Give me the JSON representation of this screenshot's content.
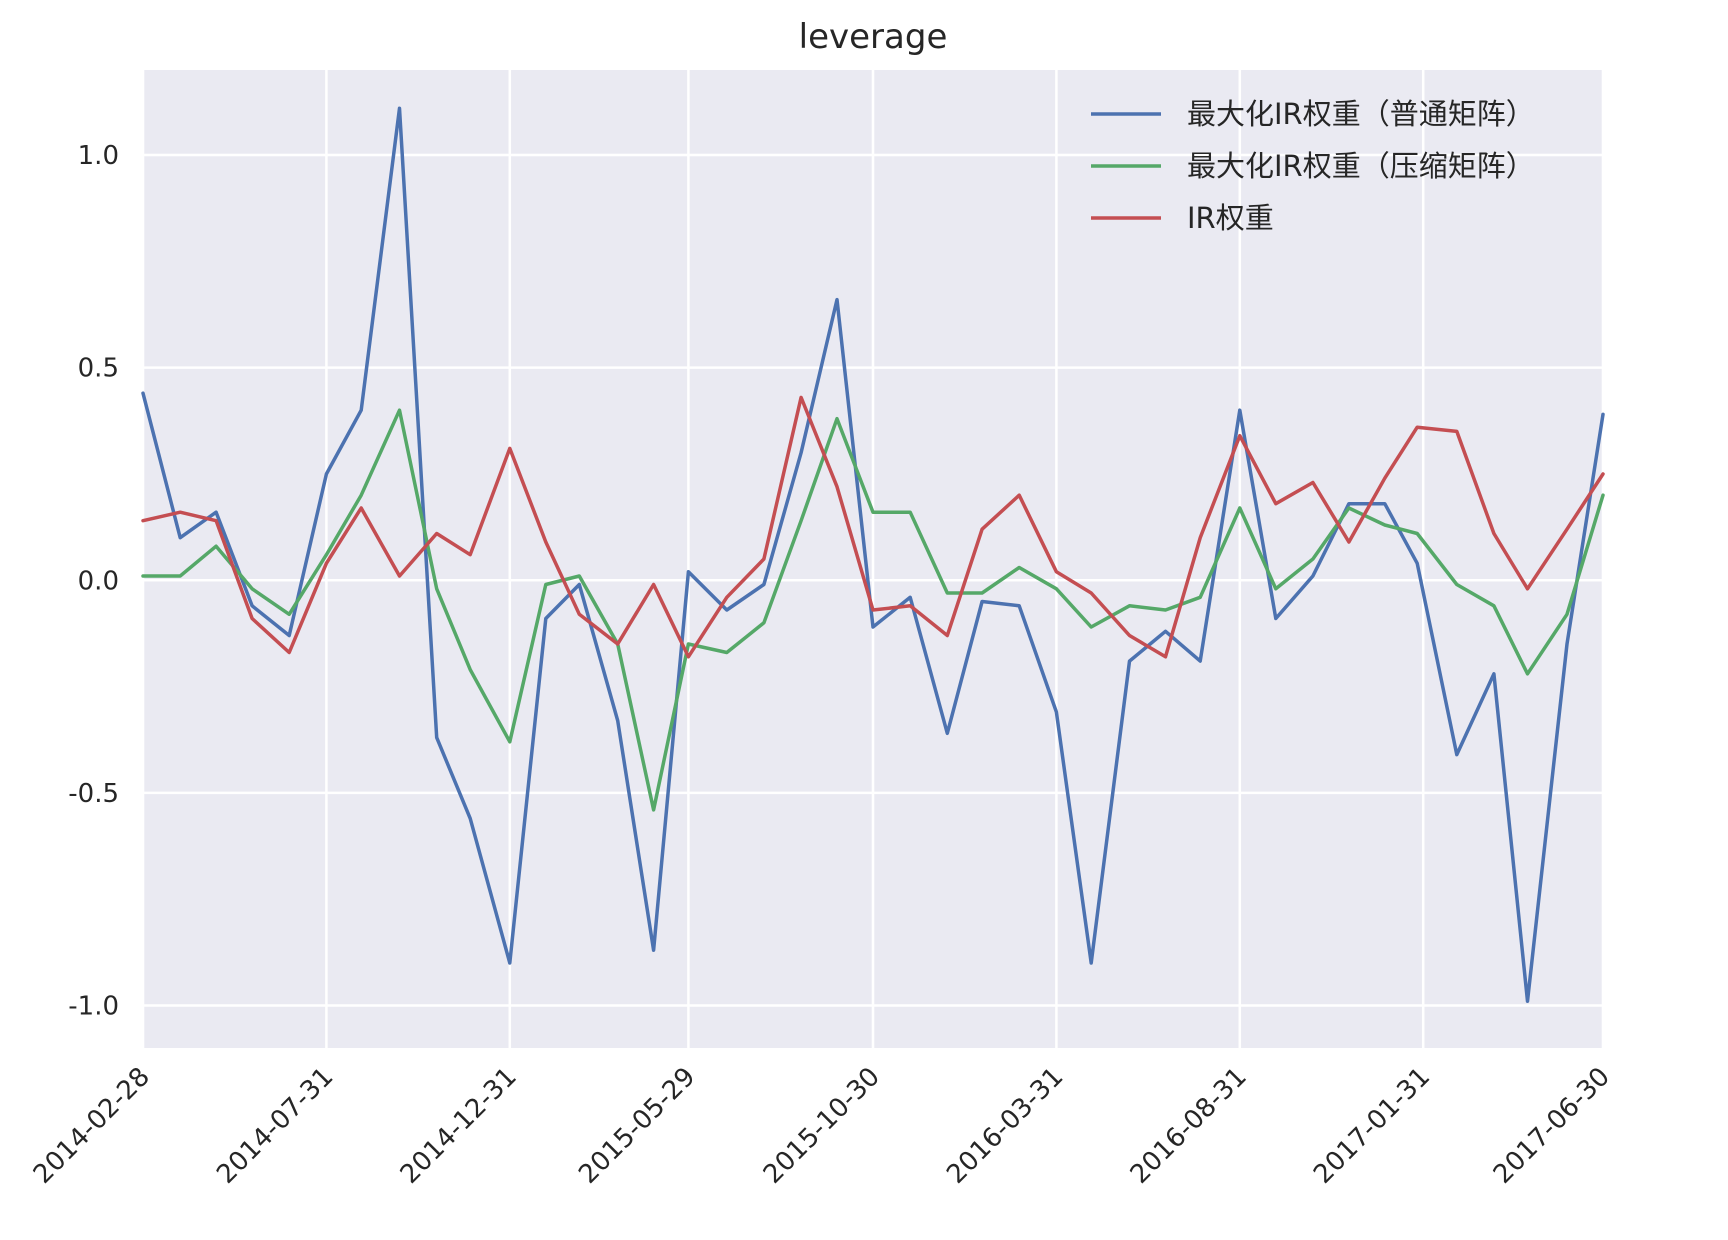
{
  "chart_data": {
    "type": "line",
    "title": "leverage",
    "xlabel": "",
    "ylabel": "",
    "ylim": [
      -1.1,
      1.2
    ],
    "grid": true,
    "legend_position": "top-right",
    "x_tick_labels": [
      "2014-02-28",
      "2014-07-31",
      "2014-12-31",
      "2015-05-29",
      "2015-10-30",
      "2016-03-31",
      "2016-08-31",
      "2017-01-31",
      "2017-06-30"
    ],
    "y_ticks": [
      1.0,
      0.5,
      0.0,
      -0.5,
      -1.0
    ],
    "y_tick_labels": [
      "1.0",
      "0.5",
      "0.0",
      "-0.5",
      "-1.0"
    ],
    "x": [
      "2014-02-28",
      "2014-03-31",
      "2014-04-30",
      "2014-05-30",
      "2014-06-30",
      "2014-07-31",
      "2014-08-29",
      "2014-09-30",
      "2014-10-31",
      "2014-11-28",
      "2014-12-31",
      "2015-01-30",
      "2015-02-27",
      "2015-03-31",
      "2015-04-30",
      "2015-05-29",
      "2015-06-30",
      "2015-07-31",
      "2015-08-31",
      "2015-09-30",
      "2015-10-30",
      "2015-11-30",
      "2015-12-31",
      "2016-01-29",
      "2016-02-29",
      "2016-03-31",
      "2016-04-29",
      "2016-05-31",
      "2016-06-30",
      "2016-07-29",
      "2016-08-31",
      "2016-09-30",
      "2016-10-31",
      "2016-11-30",
      "2016-12-30",
      "2017-01-26",
      "2017-02-28",
      "2017-03-31",
      "2017-04-28",
      "2017-05-31",
      "2017-06-30"
    ],
    "series": [
      {
        "name": "最大化IR权重（普通矩阵）",
        "color": "#4c72b0",
        "values": [
          0.44,
          0.1,
          0.16,
          -0.06,
          -0.13,
          0.25,
          0.4,
          1.11,
          -0.37,
          -0.56,
          -0.9,
          -0.09,
          -0.01,
          -0.33,
          -0.87,
          0.02,
          -0.07,
          -0.01,
          0.3,
          0.66,
          -0.11,
          -0.04,
          -0.36,
          -0.05,
          -0.06,
          -0.31,
          -0.9,
          -0.19,
          -0.12,
          -0.19,
          0.4,
          -0.09,
          0.01,
          0.18,
          0.18,
          0.04,
          -0.41,
          -0.22,
          -0.99,
          -0.15,
          0.39
        ]
      },
      {
        "name": "最大化IR权重（压缩矩阵）",
        "color": "#55a868",
        "values": [
          0.01,
          0.01,
          0.08,
          -0.02,
          -0.08,
          0.06,
          0.2,
          0.4,
          -0.02,
          -0.21,
          -0.38,
          -0.01,
          0.01,
          -0.15,
          -0.54,
          -0.15,
          -0.17,
          -0.1,
          0.14,
          0.38,
          0.16,
          0.16,
          -0.03,
          -0.03,
          0.03,
          -0.02,
          -0.11,
          -0.06,
          -0.07,
          -0.04,
          0.17,
          -0.02,
          0.05,
          0.17,
          0.13,
          0.11,
          -0.01,
          -0.06,
          -0.22,
          -0.08,
          0.2
        ]
      },
      {
        "name": "IR权重",
        "color": "#c44e52",
        "values": [
          0.14,
          0.16,
          0.14,
          -0.09,
          -0.17,
          0.04,
          0.17,
          0.01,
          0.11,
          0.06,
          0.31,
          0.09,
          -0.08,
          -0.15,
          -0.01,
          -0.18,
          -0.04,
          0.05,
          0.43,
          0.22,
          -0.07,
          -0.06,
          -0.13,
          0.12,
          0.2,
          0.02,
          -0.03,
          -0.13,
          -0.18,
          0.1,
          0.34,
          0.18,
          0.23,
          0.09,
          0.24,
          0.36,
          0.35,
          0.11,
          -0.02,
          0.12,
          0.25
        ]
      }
    ]
  }
}
